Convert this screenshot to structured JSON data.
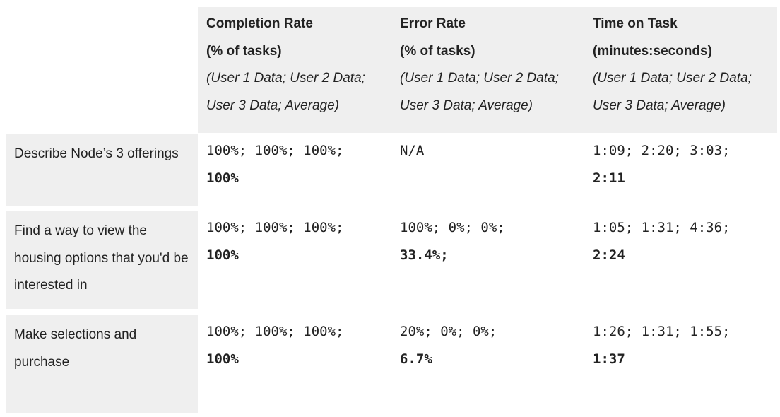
{
  "columns": [
    {
      "title": "Completion Rate",
      "unit": "(% of tasks)",
      "note": "(User 1 Data; User 2 Data; User 3 Data; Average)"
    },
    {
      "title": "Error Rate",
      "unit": "(% of tasks)",
      "note": "(User 1 Data; User 2 Data; User 3 Data; Average)"
    },
    {
      "title": "Time on Task",
      "unit": "(minutes:seconds)",
      "note": "(User 1 Data; User 2 Data; User 3 Data; Average)"
    }
  ],
  "rows": [
    {
      "task": "Describe Node’s 3 offerings",
      "cells": [
        {
          "values": "100%; 100%; 100%;",
          "avg": "100%"
        },
        {
          "values": "N/A",
          "avg": ""
        },
        {
          "values": "1:09; 2:20; 3:03;",
          "avg": "2:11"
        }
      ]
    },
    {
      "task": "Find a way to view the housing options that you'd be interested in",
      "cells": [
        {
          "values": "100%; 100%; 100%;",
          "avg": "100%"
        },
        {
          "values": "100%; 0%; 0%;",
          "avg": "33.4%;"
        },
        {
          "values": "1:05; 1:31; 4:36;",
          "avg": "2:24"
        }
      ]
    },
    {
      "task": "Make selections and purchase",
      "cells": [
        {
          "values": "100%; 100%; 100%;",
          "avg": "100%"
        },
        {
          "values": "20%; 0%; 0%;",
          "avg": "6.7%"
        },
        {
          "values": "1:26; 1:31; 1:55;",
          "avg": "1:37"
        }
      ]
    }
  ]
}
